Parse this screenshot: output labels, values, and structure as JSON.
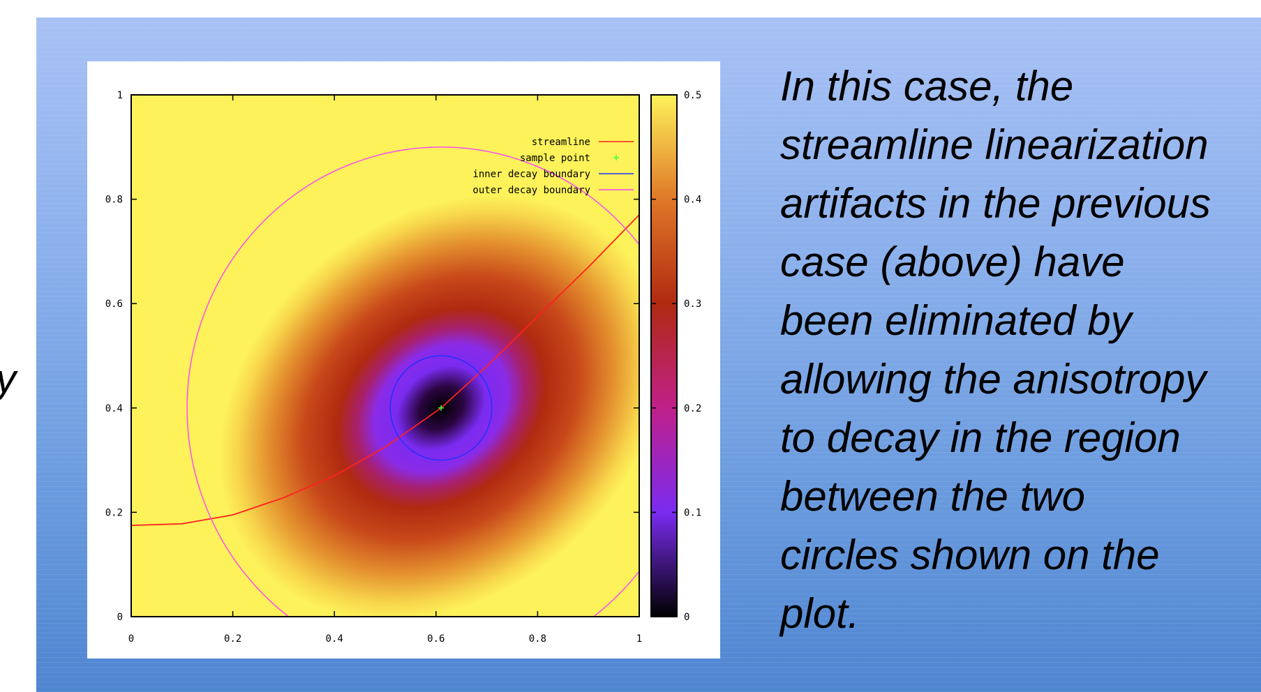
{
  "slide": {
    "left_fragment": "y",
    "caption_lines": [
      "In this case, the",
      "streamline linearization",
      "artifacts in the previous",
      "case (above) have",
      "been eliminated by",
      "allowing the anisotropy",
      "to decay in the region",
      "between the two",
      "circles shown on the",
      "plot."
    ],
    "colors": {
      "background_top": "#a8c1f5",
      "background_bottom": "#4f86d1"
    }
  },
  "chart_data": {
    "type": "heatmap",
    "title": "",
    "xlabel": "",
    "ylabel": "",
    "xlim": [
      0,
      1
    ],
    "ylim": [
      0,
      1
    ],
    "x_ticks": [
      "0",
      "0.2",
      "0.4",
      "0.6",
      "0.8",
      "1"
    ],
    "y_ticks": [
      "0",
      "0.2",
      "0.4",
      "0.6",
      "0.8",
      "1"
    ],
    "colorbar": {
      "range": [
        0,
        0.5
      ],
      "ticks": [
        "0",
        "0.1",
        "0.2",
        "0.3",
        "0.4",
        "0.5"
      ],
      "colormap": [
        "#000000",
        "#7a2bf0",
        "#c0208a",
        "#b02a10",
        "#e07828",
        "#fdf25a"
      ]
    },
    "field": {
      "description_center": [
        0.61,
        0.4
      ],
      "max_value_region": "outside outer decay boundary",
      "min_value_at": [
        0.61,
        0.4
      ]
    },
    "series": [
      {
        "name": "streamline",
        "color": "#ff2020",
        "points": [
          [
            0,
            0.175
          ],
          [
            0.1,
            0.178
          ],
          [
            0.2,
            0.195
          ],
          [
            0.3,
            0.228
          ],
          [
            0.4,
            0.27
          ],
          [
            0.5,
            0.325
          ],
          [
            0.61,
            0.4
          ],
          [
            0.7,
            0.48
          ],
          [
            0.8,
            0.575
          ],
          [
            0.9,
            0.67
          ],
          [
            1.0,
            0.77
          ]
        ]
      },
      {
        "name": "sample point",
        "color": "#40ff40",
        "points": [
          [
            0.61,
            0.4
          ]
        ]
      },
      {
        "name": "inner decay boundary",
        "color": "#2030ff",
        "circle": {
          "center": [
            0.61,
            0.4
          ],
          "radius": 0.1
        }
      },
      {
        "name": "outer decay boundary",
        "color": "#ff40ff",
        "circle": {
          "center": [
            0.61,
            0.4
          ],
          "radius": 0.5
        }
      }
    ],
    "legend_position": "top-right"
  }
}
